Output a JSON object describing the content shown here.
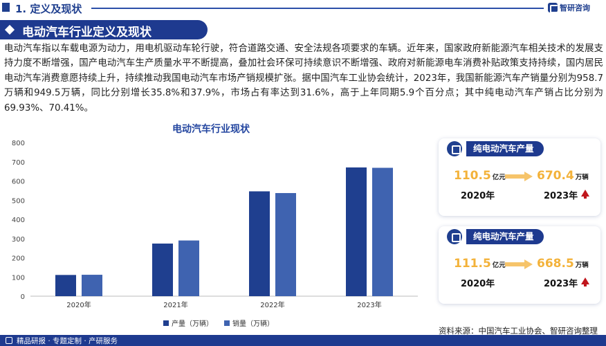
{
  "topbar": {
    "title": "1. 定义及现状",
    "logo_text": "智研咨询"
  },
  "section": {
    "title": "电动汽车行业定义及现状"
  },
  "paragraph": "电动汽车指以车载电源为动力，用电机驱动车轮行驶，符合道路交通、安全法规各项要求的车辆。近年来，国家政府新能源汽车相关技术的发展支持力度不断增强，国产电动汽车生产质量水平不断提高，叠加社会环保可持续意识不断增强、政府对新能源电车消费补贴政策支持持续，国内居民电动汽车消费意愿持续上升，持续推动我国电动汽车市场产销规模扩张。据中国汽车工业协会统计，2023年，我国新能源汽车产销量分别为958.7万辆和949.5万辆，同比分别增长35.8%和37.9%，市场占有率达到31.6%，高于上年同期5.9个百分点；其中纯电动汽车产销占比分别为69.93%、70.41%。",
  "chart_data": {
    "type": "bar",
    "title": "电动汽车行业现状",
    "categories": [
      "2020年",
      "2021年",
      "2022年",
      "2023年"
    ],
    "series": [
      {
        "name": "产量（万辆）",
        "values": [
          110.5,
          274,
          546,
          670.4
        ],
        "color": "#1f3f8f"
      },
      {
        "name": "销量（万辆）",
        "values": [
          111.5,
          290,
          537,
          668.5
        ],
        "color": "#3f63b0"
      }
    ],
    "yticks": [
      0,
      100,
      200,
      300,
      400,
      500,
      600,
      700,
      800
    ],
    "ylim": [
      0,
      800
    ],
    "grid": false,
    "legend": "bottom"
  },
  "cards": [
    {
      "label": "纯电动汽车产量",
      "left_value": "110.5",
      "left_unit": "亿元",
      "left_year": "2020年",
      "right_value": "670.4",
      "right_unit": "万辆",
      "right_year": "2023年"
    },
    {
      "label": "纯电动汽车产量",
      "left_value": "111.5",
      "left_unit": "亿元",
      "left_year": "2020年",
      "right_value": "668.5",
      "right_unit": "万辆",
      "right_year": "2023年"
    }
  ],
  "source": "资料来源：中国汽车工业协会、智研咨询整理",
  "bottombar": {
    "text": "精品研报 · 专题定制 · 产研服务"
  },
  "icons": [
    "diamond-icon",
    "logo-icon",
    "arrow-right-icon",
    "up-arrow-icon",
    "card-icon"
  ]
}
